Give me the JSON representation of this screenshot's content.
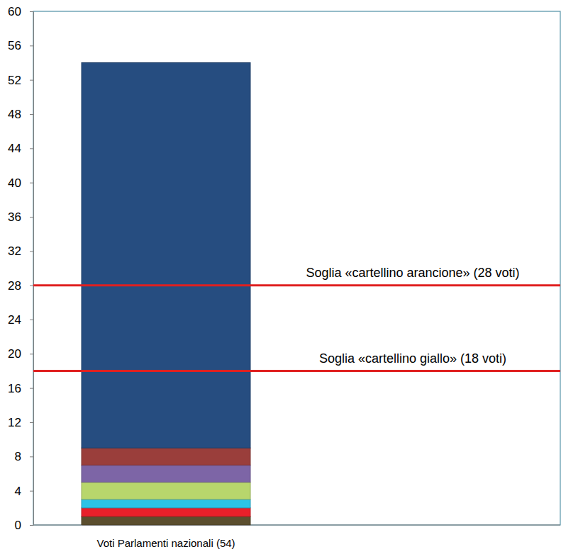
{
  "chart_data": {
    "type": "bar",
    "stacked": true,
    "categories": [
      "Voti Parlamenti nazionali (54)"
    ],
    "series": [
      {
        "color": "#5b4e2e",
        "values": [
          1
        ]
      },
      {
        "color": "#e8202a",
        "values": [
          1
        ]
      },
      {
        "color": "#2cc3e6",
        "values": [
          1
        ]
      },
      {
        "color": "#b8d66c",
        "values": [
          2
        ]
      },
      {
        "color": "#7d65a6",
        "values": [
          2
        ]
      },
      {
        "color": "#9a3e3b",
        "values": [
          2
        ]
      },
      {
        "color": "#264d80",
        "values": [
          45
        ]
      }
    ],
    "ylim": [
      0,
      60
    ],
    "yticks": [
      0,
      4,
      8,
      12,
      16,
      20,
      24,
      28,
      32,
      36,
      40,
      44,
      48,
      52,
      56,
      60
    ],
    "annotations": [
      {
        "text": "Soglia «cartellino arancione» (28 voti)",
        "y": 28,
        "color": "#e02020"
      },
      {
        "text": "Soglia «cartellino giallo» (18 voti)",
        "y": 18,
        "color": "#e02020"
      }
    ]
  }
}
